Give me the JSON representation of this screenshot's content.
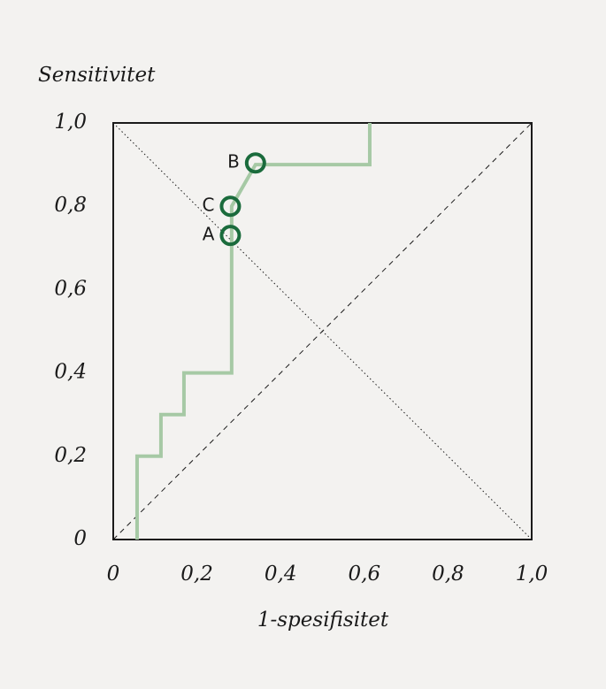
{
  "chart_data": {
    "type": "line",
    "ylabel": "Sensitivitet",
    "xlabel": "1-spesifisitet",
    "xlim": [
      0,
      1
    ],
    "ylim": [
      0,
      1
    ],
    "xticks": [
      0,
      {
        "value": 0.2,
        "label": "0,2"
      },
      {
        "value": 0.4,
        "label": "0,4"
      },
      {
        "value": 0.6,
        "label": "0,6"
      },
      {
        "value": 0.8,
        "label": "0,8"
      },
      {
        "value": 1,
        "label": "1,0"
      }
    ],
    "yticks": [
      0,
      {
        "value": 0.2,
        "label": "0,2"
      },
      {
        "value": 0.4,
        "label": "0,4"
      },
      {
        "value": 0.6,
        "label": "0,6"
      },
      {
        "value": 0.8,
        "label": "0,8"
      },
      {
        "value": 1,
        "label": "1,0"
      }
    ],
    "line": {
      "color": "#a6c9a5",
      "x": [
        0.057,
        0.057,
        0.114,
        0.114,
        0.169,
        0.169,
        0.283,
        0.283,
        0.34,
        0.613,
        0.613
      ],
      "y": [
        0,
        0.2,
        0.2,
        0.3,
        0.3,
        0.4,
        0.4,
        0.8,
        0.9,
        0.9,
        1
      ]
    },
    "points": {
      "color": "#1a6b3c",
      "labels": [
        "A",
        "B",
        "C"
      ],
      "x": [
        0.28,
        0.34,
        0.28
      ],
      "y": [
        0.73,
        0.904,
        0.8
      ]
    }
  }
}
